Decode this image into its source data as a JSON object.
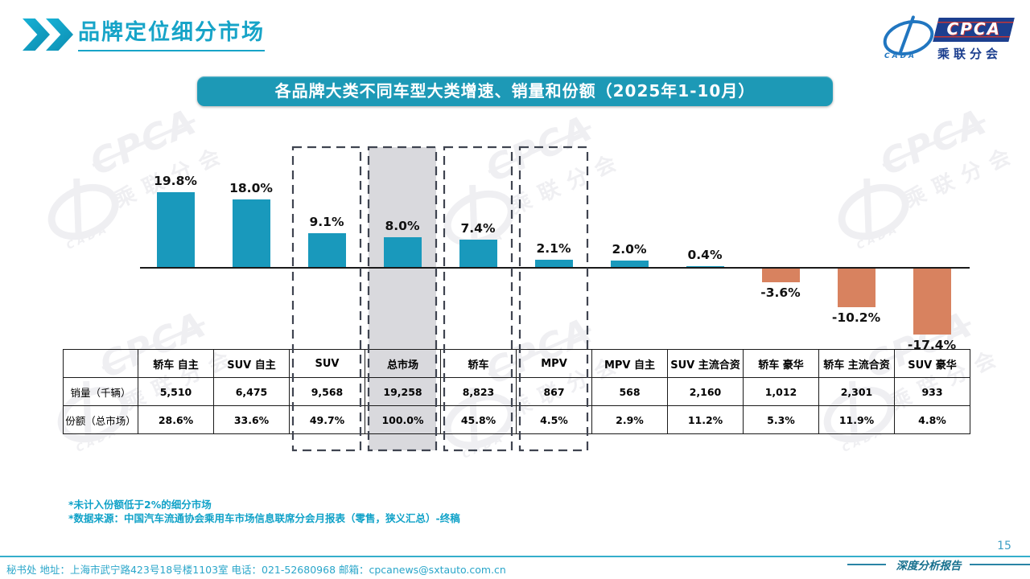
{
  "page": {
    "title": "品牌定位细分市场"
  },
  "logo": {
    "cpca": "CPCA",
    "cada": "CADA",
    "subtitle": "乘联分会"
  },
  "banner": {
    "title": "各品牌大类不同车型大类增速、销量和份额（2025年1-10月）"
  },
  "chart_data": {
    "type": "bar",
    "title": "各品牌大类不同车型大类增速、销量和份额（2025年1-10月）",
    "categories": [
      "轿车 自主",
      "SUV 自主",
      "SUV",
      "总市场",
      "轿车",
      "MPV",
      "MPV 自主",
      "SUV 主流合资",
      "轿车 豪华",
      "轿车 主流合资",
      "SUV 豪华"
    ],
    "series": [
      {
        "name": "增速",
        "unit": "%",
        "values": [
          19.8,
          18.0,
          9.1,
          8.0,
          7.4,
          2.1,
          2.0,
          0.4,
          -3.6,
          -10.2,
          -17.4
        ]
      }
    ],
    "value_labels": [
      "19.8%",
      "18.0%",
      "9.1%",
      "8.0%",
      "7.4%",
      "2.1%",
      "2.0%",
      "0.4%",
      "-3.6%",
      "-10.2%",
      "-17.4%"
    ],
    "ylim": [
      -20,
      22
    ],
    "grid": false,
    "legend": false,
    "highlight": {
      "dashed_categories": [
        "SUV",
        "总市场",
        "轿车",
        "MPV"
      ],
      "filled_category": "总市场"
    },
    "colors": {
      "positive_bar": "#1999bc",
      "negative_bar": "#d8825f",
      "highlight_fill": "#d9d9dd",
      "dash_border": "#3f4450",
      "accent_teal": "#17a4c8"
    }
  },
  "table": {
    "corner": "",
    "columns": [
      "轿车 自主",
      "SUV 自主",
      "SUV",
      "总市场",
      "轿车",
      "MPV",
      "MPV 自主",
      "SUV 主流合资",
      "轿车 豪华",
      "轿车 主流合资",
      "SUV 豪华"
    ],
    "rows": [
      {
        "label": "销量（千辆）",
        "values": [
          "5,510",
          "6,475",
          "9,568",
          "19,258",
          "8,823",
          "867",
          "568",
          "2,160",
          "1,012",
          "2,301",
          "933"
        ]
      },
      {
        "label": "份额（总市场）",
        "values": [
          "28.6%",
          "33.6%",
          "49.7%",
          "100.0%",
          "45.8%",
          "4.5%",
          "2.9%",
          "11.2%",
          "5.3%",
          "11.9%",
          "4.8%"
        ]
      }
    ]
  },
  "footnotes": [
    "*未计入份额低于2%的细分市场",
    "*数据来源：中国汽车流通协会乘用车市场信息联席分会月报表（零售，狭义汇总）-终稿"
  ],
  "footer": {
    "secretariat": "秘书处  地址：上海市武宁路423号18号楼1103室 电话：021-52680968  邮箱：cpcanews@sxtauto.com.cn",
    "report_label": "深度分析报告",
    "page_number": "15"
  },
  "watermark": {
    "cpca": "CPCA",
    "subtitle": "乘联分会",
    "cada": "CADA"
  }
}
